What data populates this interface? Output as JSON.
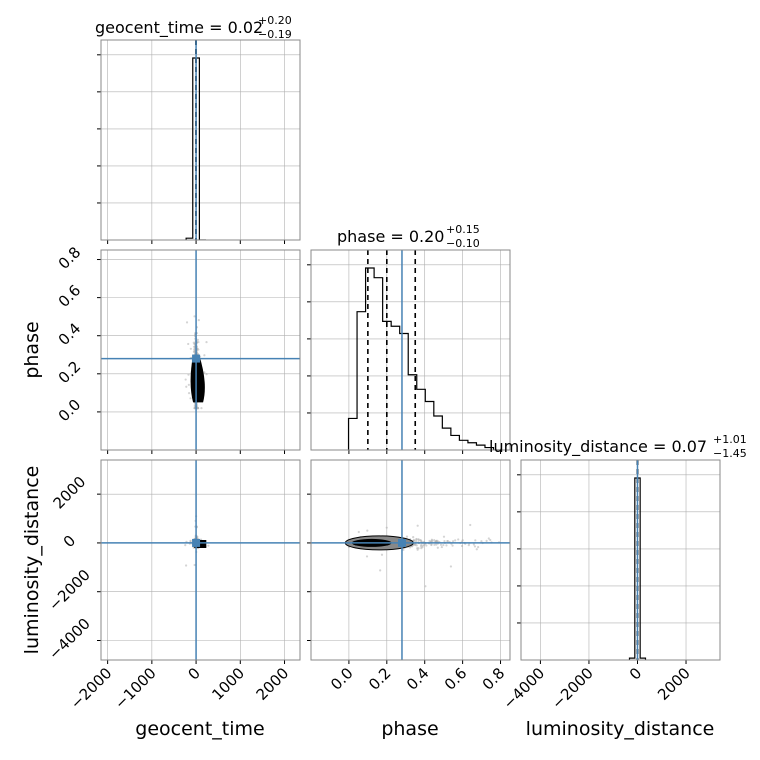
{
  "chart_data": {
    "type": "corner",
    "parameters": [
      "geocent_time",
      "phase",
      "luminosity_distance"
    ],
    "axes": {
      "geocent_time": {
        "label": "geocent_time",
        "lim": [
          -2150,
          2350
        ],
        "ticks": [
          -2000,
          -1000,
          0,
          1000,
          2000
        ],
        "tick_labels": [
          "−2000",
          "−1000",
          "0",
          "1000",
          "2000"
        ]
      },
      "phase": {
        "label": "phase",
        "lim": [
          -0.2,
          0.85
        ],
        "ticks": [
          0.0,
          0.2,
          0.4,
          0.6,
          0.8
        ],
        "tick_labels": [
          "0.0",
          "0.2",
          "0.4",
          "0.6",
          "0.8"
        ]
      },
      "luminosity_distance": {
        "label": "luminosity_distance",
        "lim": [
          -4800,
          3400
        ],
        "ticks": [
          -4000,
          -2000,
          0,
          2000
        ],
        "tick_labels": [
          "−4000",
          "−2000",
          "0",
          "2000"
        ]
      }
    },
    "injection": {
      "geocent_time": 0,
      "phase": 0.28,
      "luminosity_distance": 0
    },
    "titles": [
      {
        "param": "geocent_time",
        "main": "geocent_time = 0.02",
        "plus": "+0.20",
        "minus": "−0.19"
      },
      {
        "param": "phase",
        "main": "phase = 0.20",
        "plus": "+0.15",
        "minus": "−0.10"
      },
      {
        "param": "luminosity_distance",
        "main": "luminosity_distance = 0.07",
        "plus": "+1.01",
        "minus": "−1.45"
      }
    ],
    "quantiles": {
      "geocent_time": [
        -0.17,
        0.02,
        0.22
      ],
      "phase": [
        0.1,
        0.2,
        0.35
      ],
      "luminosity_distance": [
        -1.38,
        0.07,
        1.08
      ]
    },
    "histograms": {
      "geocent_time": {
        "edges": [
          -225,
          -75,
          75,
          225
        ],
        "counts": [
          0.01,
          1.0,
          0.0
        ]
      },
      "phase": {
        "edges": [
          -0.002,
          0.043,
          0.088,
          0.133,
          0.178,
          0.223,
          0.268,
          0.313,
          0.358,
          0.403,
          0.448,
          0.493,
          0.538,
          0.583,
          0.628,
          0.673,
          0.718,
          0.763,
          0.808
        ],
        "counts": [
          0.13,
          0.57,
          0.75,
          0.71,
          0.53,
          0.51,
          0.48,
          0.31,
          0.25,
          0.2,
          0.14,
          0.09,
          0.06,
          0.04,
          0.03,
          0.02,
          0.01,
          0.0
        ]
      },
      "luminosity_distance": {
        "edges": [
          -330,
          -110,
          110,
          330
        ],
        "counts": [
          0.01,
          0.99,
          0.01
        ]
      }
    },
    "grid": true,
    "colors": {
      "truth": "#4682b4",
      "hist": "#000000",
      "scatter": "#b0b0b0",
      "grid": "#b0b0b0"
    }
  }
}
